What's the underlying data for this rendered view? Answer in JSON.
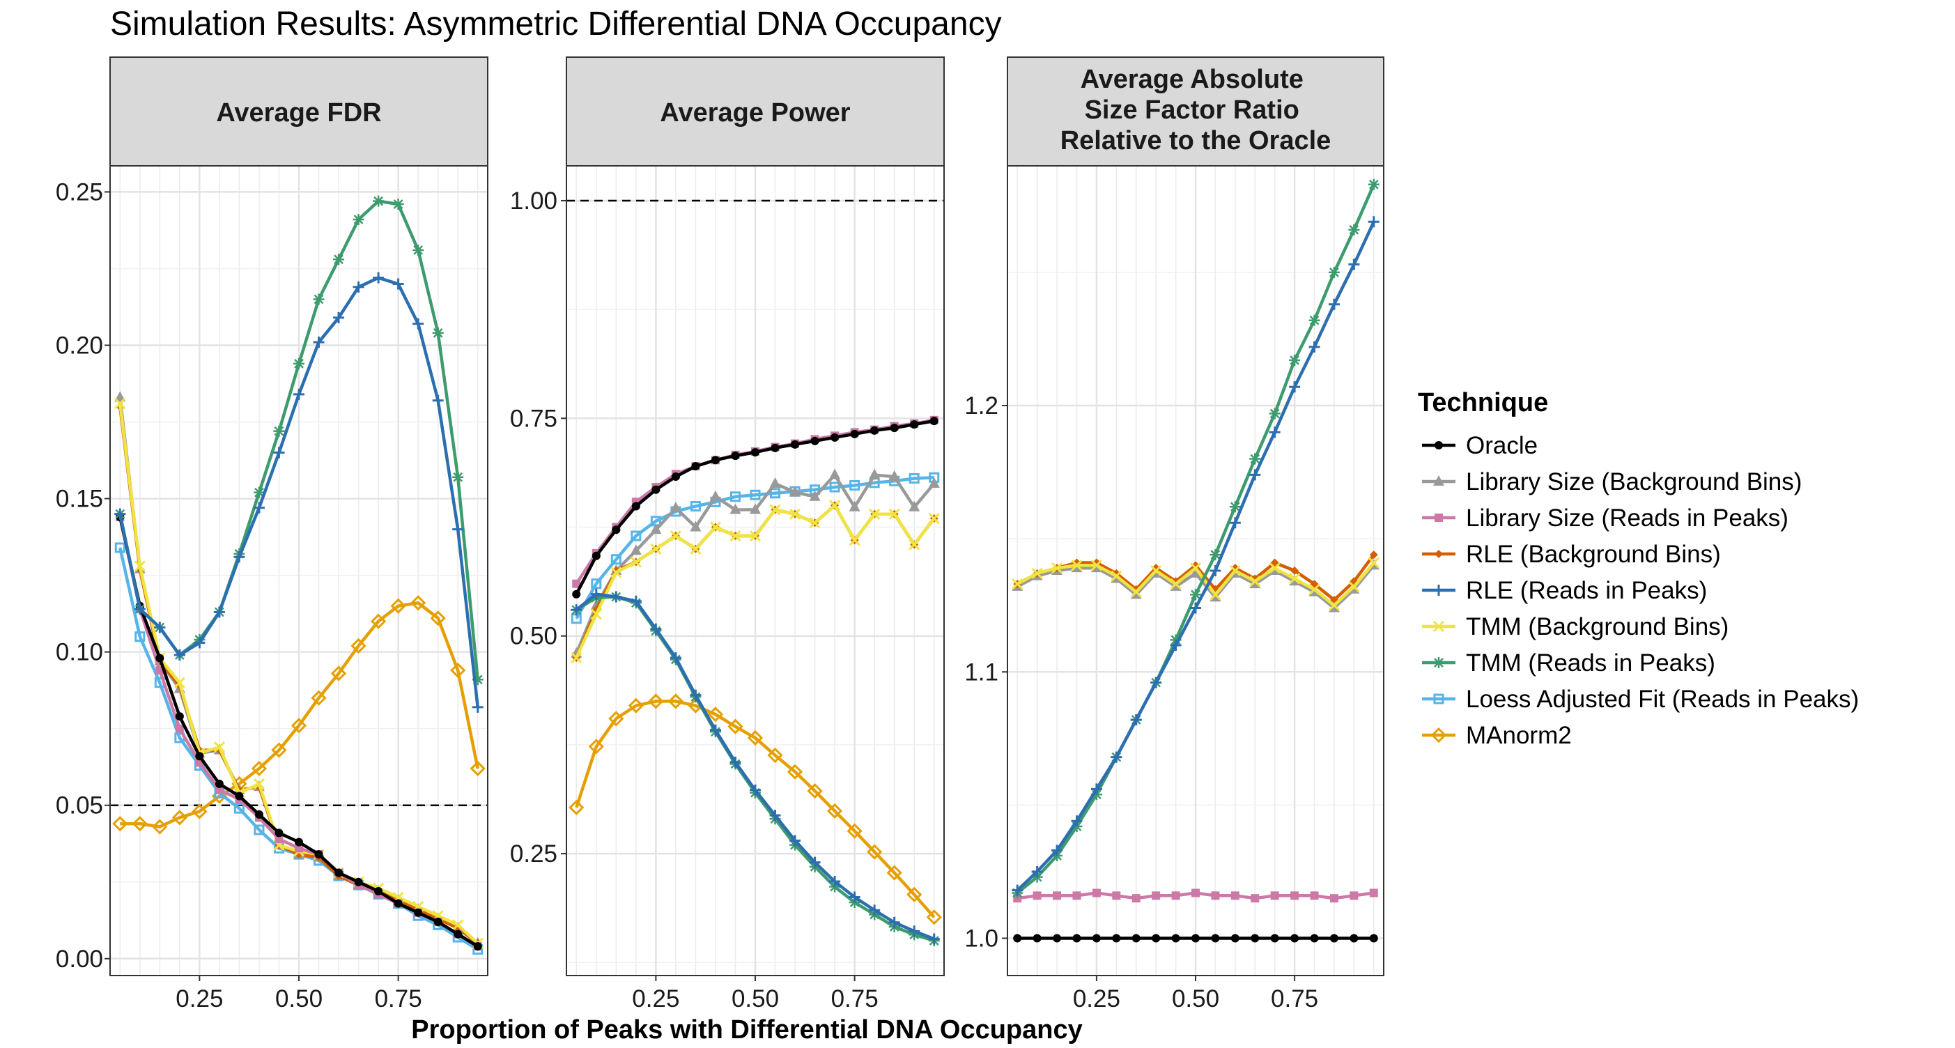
{
  "title": "Simulation Results: Asymmetric Differential DNA Occupancy",
  "xlabel": "Proportion of Peaks with Differential DNA Occupancy",
  "legend": {
    "title": "Technique",
    "position": "right"
  },
  "colors": {
    "Oracle": "#000000",
    "Library Size (Background Bins)": "#999999",
    "Library Size (Reads in Peaks)": "#CC79A7",
    "RLE (Background Bins)": "#D55E00",
    "RLE (Reads in Peaks)": "#2C6FB0",
    "TMM (Background Bins)": "#F0E442",
    "TMM (Reads in Peaks)": "#3D9B6E",
    "Loess Adjusted Fit (Reads in Peaks)": "#56B4E9",
    "MAnorm2": "#E69F00"
  },
  "markers": {
    "Oracle": "circle",
    "Library Size (Background Bins)": "triangle",
    "Library Size (Reads in Peaks)": "square",
    "RLE (Background Bins)": "diamond-small",
    "RLE (Reads in Peaks)": "plus",
    "TMM (Background Bins)": "cross",
    "TMM (Reads in Peaks)": "asterisk",
    "Loess Adjusted Fit (Reads in Peaks)": "square-open",
    "MAnorm2": "diamond-open"
  },
  "chart_data": [
    {
      "type": "line",
      "title": "Average FDR",
      "x": [
        0.05,
        0.1,
        0.15,
        0.2,
        0.25,
        0.3,
        0.35,
        0.4,
        0.45,
        0.5,
        0.55,
        0.6,
        0.65,
        0.7,
        0.75,
        0.8,
        0.85,
        0.9,
        0.95
      ],
      "xticks": [
        0.25,
        0.5,
        0.75
      ],
      "xtick_labels": [
        "0.25",
        "0.50",
        "0.75"
      ],
      "xlim": [
        0.025,
        0.975
      ],
      "ylim": [
        -0.0055,
        0.2585
      ],
      "yticks": [
        0,
        0.05,
        0.1,
        0.15,
        0.2,
        0.25
      ],
      "ytick_labels": [
        "0.00",
        "0.05",
        "0.10",
        "0.15",
        "0.20",
        "0.25"
      ],
      "hline": 0.05,
      "grid": true,
      "series": [
        {
          "name": "Oracle",
          "values": [
            0.144,
            0.115,
            0.098,
            0.079,
            0.066,
            0.057,
            0.053,
            0.047,
            0.041,
            0.038,
            0.034,
            0.028,
            0.025,
            0.022,
            0.018,
            0.015,
            0.012,
            0.008,
            0.004
          ]
        },
        {
          "name": "Library Size (Background Bins)",
          "values": [
            0.183,
            0.127,
            0.097,
            0.088,
            0.067,
            0.068,
            0.055,
            0.056,
            0.037,
            0.034,
            0.033,
            0.027,
            0.024,
            0.022,
            0.019,
            0.016,
            0.013,
            0.01,
            0.005
          ]
        },
        {
          "name": "Library Size (Reads in Peaks)",
          "values": [
            0.144,
            0.114,
            0.094,
            0.075,
            0.064,
            0.055,
            0.052,
            0.046,
            0.039,
            0.036,
            0.034,
            0.028,
            0.024,
            0.021,
            0.018,
            0.015,
            0.012,
            0.008,
            0.004
          ]
        },
        {
          "name": "RLE (Background Bins)",
          "values": [
            0.18,
            0.127,
            0.097,
            0.089,
            0.068,
            0.068,
            0.055,
            0.056,
            0.037,
            0.034,
            0.033,
            0.027,
            0.024,
            0.022,
            0.019,
            0.016,
            0.013,
            0.01,
            0.005
          ]
        },
        {
          "name": "RLE (Reads in Peaks)",
          "values": [
            0.145,
            0.114,
            0.108,
            0.099,
            0.103,
            0.113,
            0.131,
            0.147,
            0.165,
            0.184,
            0.201,
            0.209,
            0.219,
            0.222,
            0.22,
            0.207,
            0.182,
            0.14,
            0.082
          ]
        },
        {
          "name": "TMM (Background Bins)",
          "values": [
            0.181,
            0.128,
            0.098,
            0.09,
            0.067,
            0.069,
            0.054,
            0.057,
            0.037,
            0.035,
            0.034,
            0.028,
            0.025,
            0.023,
            0.02,
            0.017,
            0.014,
            0.011,
            0.005
          ]
        },
        {
          "name": "TMM (Reads in Peaks)",
          "values": [
            0.145,
            0.114,
            0.108,
            0.099,
            0.104,
            0.113,
            0.132,
            0.152,
            0.172,
            0.194,
            0.215,
            0.228,
            0.241,
            0.247,
            0.246,
            0.231,
            0.204,
            0.157,
            0.091
          ]
        },
        {
          "name": "Loess Adjusted Fit (Reads in Peaks)",
          "values": [
            0.134,
            0.105,
            0.09,
            0.072,
            0.063,
            0.054,
            0.049,
            0.042,
            0.036,
            0.034,
            0.032,
            0.027,
            0.024,
            0.021,
            0.018,
            0.014,
            0.011,
            0.007,
            0.003
          ]
        },
        {
          "name": "MAnorm2",
          "values": [
            0.044,
            0.044,
            0.043,
            0.046,
            0.048,
            0.053,
            0.057,
            0.062,
            0.068,
            0.076,
            0.085,
            0.093,
            0.102,
            0.11,
            0.115,
            0.116,
            0.111,
            0.094,
            0.062
          ]
        }
      ]
    },
    {
      "type": "line",
      "title": "Average Power",
      "x": [
        0.05,
        0.1,
        0.15,
        0.2,
        0.25,
        0.3,
        0.35,
        0.4,
        0.45,
        0.5,
        0.55,
        0.6,
        0.65,
        0.7,
        0.75,
        0.8,
        0.85,
        0.9,
        0.95
      ],
      "xticks": [
        0.25,
        0.5,
        0.75
      ],
      "xtick_labels": [
        "0.25",
        "0.50",
        "0.75"
      ],
      "xlim": [
        0.025,
        0.975
      ],
      "ylim": [
        0.11,
        1.04
      ],
      "yticks": [
        0.25,
        0.5,
        0.75,
        1.0
      ],
      "ytick_labels": [
        "0.25",
        "0.50",
        "0.75",
        "1.00"
      ],
      "hline": 1.0,
      "grid": true,
      "series": [
        {
          "name": "Oracle",
          "values": [
            0.548,
            0.592,
            0.622,
            0.649,
            0.668,
            0.683,
            0.695,
            0.702,
            0.707,
            0.711,
            0.716,
            0.72,
            0.724,
            0.728,
            0.732,
            0.736,
            0.739,
            0.743,
            0.747
          ]
        },
        {
          "name": "Library Size (Background Bins)",
          "values": [
            0.48,
            0.535,
            0.575,
            0.598,
            0.622,
            0.647,
            0.625,
            0.66,
            0.645,
            0.645,
            0.675,
            0.665,
            0.66,
            0.685,
            0.648,
            0.685,
            0.683,
            0.648,
            0.675
          ]
        },
        {
          "name": "Library Size (Reads in Peaks)",
          "values": [
            0.56,
            0.595,
            0.625,
            0.654,
            0.671,
            0.686,
            0.695,
            0.702,
            0.708,
            0.712,
            0.717,
            0.721,
            0.726,
            0.73,
            0.734,
            0.737,
            0.741,
            0.744,
            0.748
          ]
        },
        {
          "name": "RLE (Background Bins)",
          "values": [
            0.475,
            0.53,
            0.575,
            0.585,
            0.6,
            0.615,
            0.6,
            0.625,
            0.615,
            0.615,
            0.645,
            0.64,
            0.63,
            0.65,
            0.61,
            0.64,
            0.64,
            0.605,
            0.635
          ]
        },
        {
          "name": "RLE (Reads in Peaks)",
          "values": [
            0.53,
            0.548,
            0.545,
            0.54,
            0.508,
            0.475,
            0.432,
            0.392,
            0.355,
            0.323,
            0.294,
            0.265,
            0.24,
            0.218,
            0.2,
            0.185,
            0.171,
            0.161,
            0.152
          ]
        },
        {
          "name": "TMM (Background Bins)",
          "values": [
            0.475,
            0.525,
            0.573,
            0.585,
            0.6,
            0.615,
            0.6,
            0.625,
            0.615,
            0.615,
            0.645,
            0.64,
            0.63,
            0.65,
            0.61,
            0.64,
            0.64,
            0.605,
            0.635
          ]
        },
        {
          "name": "TMM (Reads in Peaks)",
          "values": [
            0.53,
            0.544,
            0.545,
            0.538,
            0.506,
            0.473,
            0.43,
            0.39,
            0.353,
            0.32,
            0.29,
            0.26,
            0.235,
            0.212,
            0.194,
            0.18,
            0.166,
            0.157,
            0.15
          ]
        },
        {
          "name": "Loess Adjusted Fit (Reads in Peaks)",
          "values": [
            0.52,
            0.56,
            0.588,
            0.615,
            0.632,
            0.643,
            0.649,
            0.654,
            0.66,
            0.662,
            0.664,
            0.666,
            0.668,
            0.671,
            0.673,
            0.676,
            0.678,
            0.681,
            0.682
          ]
        },
        {
          "name": "MAnorm2",
          "values": [
            0.303,
            0.373,
            0.405,
            0.42,
            0.425,
            0.425,
            0.42,
            0.41,
            0.396,
            0.383,
            0.363,
            0.344,
            0.322,
            0.299,
            0.276,
            0.252,
            0.228,
            0.203,
            0.177
          ]
        }
      ]
    },
    {
      "type": "line",
      "title": "Average Absolute\nSize Factor Ratio\nRelative to the Oracle",
      "x": [
        0.05,
        0.1,
        0.15,
        0.2,
        0.25,
        0.3,
        0.35,
        0.4,
        0.45,
        0.5,
        0.55,
        0.6,
        0.65,
        0.7,
        0.75,
        0.8,
        0.85,
        0.9,
        0.95
      ],
      "xticks": [
        0.25,
        0.5,
        0.75
      ],
      "xtick_labels": [
        "0.25",
        "0.50",
        "0.75"
      ],
      "xlim": [
        0.025,
        0.975
      ],
      "ylim": [
        0.986,
        1.29
      ],
      "yticks": [
        1.0,
        1.1,
        1.2
      ],
      "ytick_labels": [
        "1.0",
        "1.1",
        "1.2"
      ],
      "hline": null,
      "grid": true,
      "series": [
        {
          "name": "Oracle",
          "values": [
            1,
            1,
            1,
            1,
            1,
            1,
            1,
            1,
            1,
            1,
            1,
            1,
            1,
            1,
            1,
            1,
            1,
            1,
            1
          ]
        },
        {
          "name": "Library Size (Background Bins)",
          "values": [
            1.132,
            1.136,
            1.138,
            1.139,
            1.139,
            1.135,
            1.129,
            1.137,
            1.132,
            1.137,
            1.128,
            1.137,
            1.133,
            1.138,
            1.134,
            1.13,
            1.124,
            1.131,
            1.14
          ]
        },
        {
          "name": "Library Size (Reads in Peaks)",
          "values": [
            1.015,
            1.016,
            1.016,
            1.016,
            1.017,
            1.016,
            1.015,
            1.016,
            1.016,
            1.017,
            1.016,
            1.016,
            1.015,
            1.016,
            1.016,
            1.016,
            1.015,
            1.016,
            1.017
          ]
        },
        {
          "name": "RLE (Background Bins)",
          "values": [
            1.133,
            1.137,
            1.139,
            1.141,
            1.141,
            1.137,
            1.131,
            1.139,
            1.134,
            1.14,
            1.131,
            1.139,
            1.135,
            1.141,
            1.138,
            1.133,
            1.127,
            1.134,
            1.144
          ]
        },
        {
          "name": "RLE (Reads in Peaks)",
          "values": [
            1.018,
            1.025,
            1.033,
            1.044,
            1.056,
            1.068,
            1.082,
            1.096,
            1.11,
            1.124,
            1.138,
            1.156,
            1.174,
            1.19,
            1.207,
            1.222,
            1.238,
            1.253,
            1.269
          ]
        },
        {
          "name": "TMM (Background Bins)",
          "values": [
            1.133,
            1.137,
            1.139,
            1.14,
            1.14,
            1.136,
            1.13,
            1.138,
            1.133,
            1.139,
            1.129,
            1.138,
            1.134,
            1.139,
            1.135,
            1.131,
            1.125,
            1.132,
            1.141
          ]
        },
        {
          "name": "TMM (Reads in Peaks)",
          "values": [
            1.017,
            1.023,
            1.031,
            1.042,
            1.054,
            1.068,
            1.082,
            1.096,
            1.112,
            1.129,
            1.144,
            1.162,
            1.18,
            1.197,
            1.217,
            1.232,
            1.25,
            1.266,
            1.283
          ]
        },
        {
          "name": "Loess Adjusted Fit (Reads in Peaks)",
          "values": [
            1.133,
            1.137,
            1.139,
            1.14,
            1.14,
            1.136,
            1.13,
            1.138,
            1.133,
            1.139,
            1.129,
            1.138,
            1.134,
            1.139,
            1.135,
            1.131,
            1.125,
            1.132,
            1.141
          ]
        },
        {
          "name": "MAnorm2",
          "values": [
            1.133,
            1.137,
            1.139,
            1.14,
            1.14,
            1.136,
            1.13,
            1.138,
            1.133,
            1.139,
            1.129,
            1.138,
            1.134,
            1.139,
            1.135,
            1.131,
            1.125,
            1.132,
            1.141
          ]
        }
      ],
      "hidden_series": [
        "Loess Adjusted Fit (Reads in Peaks)",
        "MAnorm2"
      ]
    }
  ]
}
